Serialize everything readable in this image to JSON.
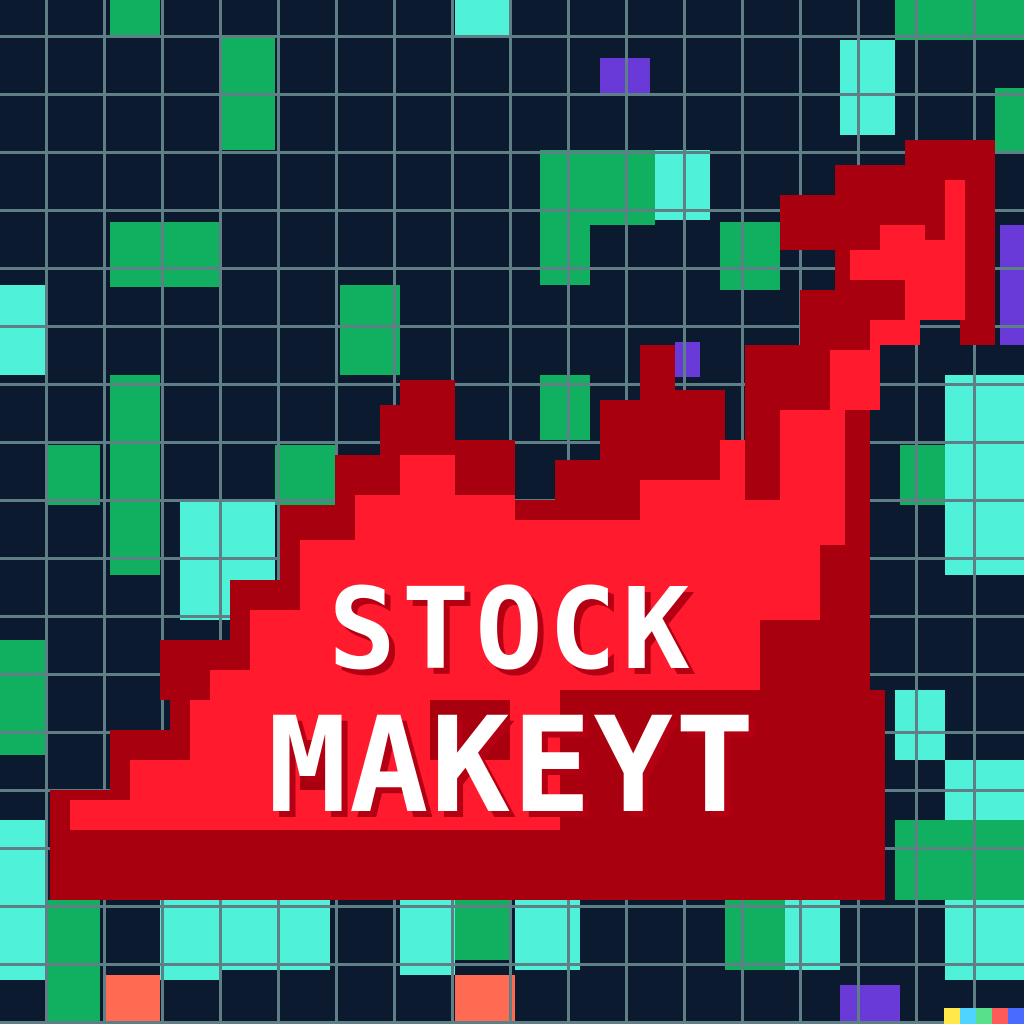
{
  "title": {
    "line1": "STOCK",
    "line2": "MAKEYT"
  },
  "colors": {
    "background": "#0b1a2e",
    "grid_line": "#5f7f86",
    "green": "#10b060",
    "teal": "#4ff2d8",
    "purple": "#6a3ad8",
    "red_bright": "#ff1a2e",
    "red_dark": "#a8000f",
    "salmon": "#ff6a52",
    "text": "#ffffff"
  }
}
